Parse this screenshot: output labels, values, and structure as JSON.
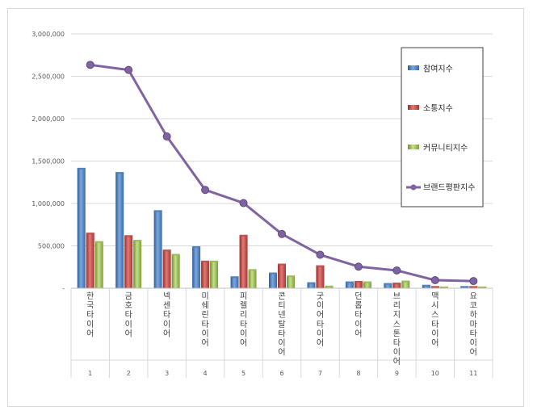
{
  "chart_data": {
    "type": "bar",
    "title": "",
    "xlabel": "",
    "ylabel": "",
    "ylim": [
      0,
      3000000
    ],
    "yticks": [
      "-",
      "500,000",
      "1,000,000",
      "1,500,000",
      "2,000,000",
      "2,500,000",
      "3,000,000"
    ],
    "grid": true,
    "legend_position": "right",
    "category_numbers": [
      "1",
      "2",
      "3",
      "4",
      "5",
      "6",
      "7",
      "8",
      "9",
      "10",
      "11"
    ],
    "categories": [
      "한국타이어",
      "금호타이어",
      "넥센타이어",
      "미쉐린타이어",
      "피렐리타이어",
      "콘티넨탈타이어",
      "굿이어타이어",
      "던롭타이어",
      "브리지스톤타이어",
      "맥시스타이어",
      "요코하마타이어"
    ],
    "series": [
      {
        "name": "참여지수",
        "kind": "bar",
        "color": "#4f81bd",
        "values": [
          1420000,
          1370000,
          920000,
          495000,
          140000,
          185000,
          70000,
          80000,
          60000,
          40000,
          25000
        ]
      },
      {
        "name": "소통지수",
        "kind": "bar",
        "color": "#c0504d",
        "values": [
          655000,
          625000,
          455000,
          325000,
          630000,
          290000,
          270000,
          85000,
          65000,
          25000,
          25000
        ]
      },
      {
        "name": "커뮤니티지수",
        "kind": "bar",
        "color": "#9bbb59",
        "values": [
          555000,
          570000,
          405000,
          325000,
          225000,
          150000,
          30000,
          80000,
          90000,
          20000,
          20000
        ]
      },
      {
        "name": "브랜드평판지수",
        "kind": "line",
        "color": "#8064a2",
        "values": [
          2635000,
          2575000,
          1790000,
          1160000,
          1005000,
          640000,
          395000,
          255000,
          210000,
          95000,
          85000
        ]
      }
    ]
  }
}
